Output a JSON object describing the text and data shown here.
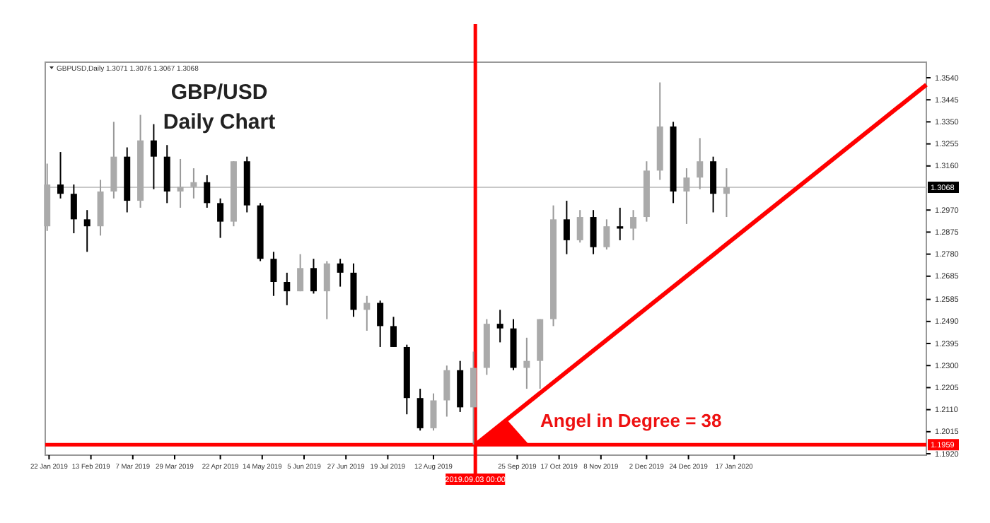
{
  "chart_data": {
    "type": "candlestick",
    "title": "GBP/USD",
    "subtitle": "Daily Chart",
    "annotations": [
      "GBPUSD,Daily 1.3071 1.3076 1.3067 1.3068",
      "Angel in Degree = 38"
    ],
    "x": [
      "2019-01-21",
      "2019-01-28",
      "2019-02-04",
      "2019-02-11",
      "2019-02-18",
      "2019-02-25",
      "2019-03-04",
      "2019-03-11",
      "2019-03-18",
      "2019-03-25",
      "2019-04-01",
      "2019-04-08",
      "2019-04-15",
      "2019-04-22",
      "2019-04-29",
      "2019-05-06",
      "2019-05-13",
      "2019-05-20",
      "2019-05-27",
      "2019-06-03",
      "2019-06-10",
      "2019-06-17",
      "2019-06-24",
      "2019-07-01",
      "2019-07-08",
      "2019-07-15",
      "2019-07-22",
      "2019-07-29",
      "2019-08-05",
      "2019-08-12",
      "2019-08-19",
      "2019-08-26",
      "2019-09-02",
      "2019-09-09",
      "2019-09-16",
      "2019-09-23",
      "2019-09-30",
      "2019-10-07",
      "2019-10-14",
      "2019-10-21",
      "2019-10-28",
      "2019-11-04",
      "2019-11-11",
      "2019-11-18",
      "2019-11-25",
      "2019-12-02",
      "2019-12-09",
      "2019-12-16",
      "2019-12-23",
      "2019-12-30",
      "2020-01-06",
      "2020-01-13"
    ],
    "ohlc": [
      [
        1.29,
        1.317,
        1.288,
        1.308
      ],
      [
        1.308,
        1.322,
        1.302,
        1.304
      ],
      [
        1.304,
        1.308,
        1.287,
        1.293
      ],
      [
        1.293,
        1.297,
        1.279,
        1.29
      ],
      [
        1.29,
        1.31,
        1.286,
        1.305
      ],
      [
        1.305,
        1.335,
        1.302,
        1.32
      ],
      [
        1.32,
        1.324,
        1.296,
        1.301
      ],
      [
        1.301,
        1.338,
        1.298,
        1.327
      ],
      [
        1.327,
        1.334,
        1.306,
        1.32
      ],
      [
        1.32,
        1.325,
        1.3,
        1.305
      ],
      [
        1.305,
        1.319,
        1.298,
        1.307
      ],
      [
        1.307,
        1.315,
        1.302,
        1.309
      ],
      [
        1.309,
        1.312,
        1.298,
        1.3
      ],
      [
        1.3,
        1.302,
        1.285,
        1.292
      ],
      [
        1.292,
        1.318,
        1.29,
        1.318
      ],
      [
        1.318,
        1.32,
        1.296,
        1.299
      ],
      [
        1.299,
        1.3,
        1.275,
        1.276
      ],
      [
        1.276,
        1.279,
        1.26,
        1.266
      ],
      [
        1.266,
        1.27,
        1.256,
        1.262
      ],
      [
        1.262,
        1.278,
        1.262,
        1.272
      ],
      [
        1.272,
        1.276,
        1.261,
        1.262
      ],
      [
        1.262,
        1.275,
        1.25,
        1.274
      ],
      [
        1.274,
        1.276,
        1.264,
        1.27
      ],
      [
        1.27,
        1.274,
        1.251,
        1.254
      ],
      [
        1.254,
        1.26,
        1.245,
        1.257
      ],
      [
        1.257,
        1.258,
        1.238,
        1.247
      ],
      [
        1.247,
        1.251,
        1.238,
        1.238
      ],
      [
        1.238,
        1.239,
        1.209,
        1.216
      ],
      [
        1.216,
        1.22,
        1.202,
        1.203
      ],
      [
        1.203,
        1.218,
        1.202,
        1.215
      ],
      [
        1.215,
        1.23,
        1.208,
        1.228
      ],
      [
        1.228,
        1.232,
        1.21,
        1.212
      ],
      [
        1.212,
        1.236,
        1.196,
        1.229
      ],
      [
        1.229,
        1.25,
        1.226,
        1.248
      ],
      [
        1.248,
        1.254,
        1.24,
        1.246
      ],
      [
        1.246,
        1.25,
        1.228,
        1.229
      ],
      [
        1.229,
        1.242,
        1.22,
        1.232
      ],
      [
        1.232,
        1.25,
        1.22,
        1.25
      ],
      [
        1.25,
        1.299,
        1.247,
        1.293
      ],
      [
        1.293,
        1.301,
        1.278,
        1.284
      ],
      [
        1.284,
        1.297,
        1.283,
        1.294
      ],
      [
        1.294,
        1.297,
        1.278,
        1.281
      ],
      [
        1.281,
        1.293,
        1.28,
        1.29
      ],
      [
        1.29,
        1.298,
        1.284,
        1.289
      ],
      [
        1.289,
        1.297,
        1.284,
        1.294
      ],
      [
        1.294,
        1.318,
        1.292,
        1.314
      ],
      [
        1.314,
        1.352,
        1.31,
        1.333
      ],
      [
        1.333,
        1.335,
        1.3,
        1.305
      ],
      [
        1.305,
        1.315,
        1.291,
        1.311
      ],
      [
        1.311,
        1.328,
        1.306,
        1.318
      ],
      [
        1.318,
        1.32,
        1.296,
        1.304
      ],
      [
        1.304,
        1.315,
        1.294,
        1.3068
      ]
    ],
    "series": [
      {
        "type": "line",
        "color": "#ff0000",
        "x": [
          "2019-09-03",
          "2020-04-27"
        ],
        "values": [
          1.1959,
          1.351
        ]
      }
    ],
    "xlim": [
      "2019-01-20",
      "2020-04-27"
    ],
    "xticks": [
      {
        "value": "2019-01-22",
        "label": "22 Jan 2019"
      },
      {
        "value": "2019-02-13",
        "label": "13 Feb 2019"
      },
      {
        "value": "2019-03-07",
        "label": "7 Mar 2019"
      },
      {
        "value": "2019-03-29",
        "label": "29 Mar 2019"
      },
      {
        "value": "2019-04-22",
        "label": "22 Apr 2019"
      },
      {
        "value": "2019-05-14",
        "label": "14 May 2019"
      },
      {
        "value": "2019-06-05",
        "label": "5 Jun 2019"
      },
      {
        "value": "2019-06-27",
        "label": "27 Jun 2019"
      },
      {
        "value": "2019-07-19",
        "label": "19 Jul 2019"
      },
      {
        "value": "2019-08-12",
        "label": "12 Aug 2019"
      },
      {
        "value": "2019-09-25",
        "label": "25 Sep 2019"
      },
      {
        "value": "2019-10-17",
        "label": "17 Oct 2019"
      },
      {
        "value": "2019-11-08",
        "label": "8 Nov 2019"
      },
      {
        "value": "2019-12-02",
        "label": "2 Dec 2019"
      },
      {
        "value": "2019-12-24",
        "label": "24 Dec 2019"
      },
      {
        "value": "2020-01-17",
        "label": "17 Jan 2020"
      }
    ],
    "ylim": [
      1.1914,
      1.3607
    ],
    "yticks": [
      {
        "value": 1.192,
        "label": "1.1920"
      },
      {
        "value": 1.2015,
        "label": "1.2015"
      },
      {
        "value": 1.211,
        "label": "1.2110"
      },
      {
        "value": 1.2205,
        "label": "1.2205"
      },
      {
        "value": 1.23,
        "label": "1.2300"
      },
      {
        "value": 1.2395,
        "label": "1.2395"
      },
      {
        "value": 1.249,
        "label": "1.2490"
      },
      {
        "value": 1.2585,
        "label": "1.2585"
      },
      {
        "value": 1.2685,
        "label": "1.2685"
      },
      {
        "value": 1.278,
        "label": "1.2780"
      },
      {
        "value": 1.2875,
        "label": "1.2875"
      },
      {
        "value": 1.297,
        "label": "1.2970"
      },
      {
        "value": 1.316,
        "label": "1.3160"
      },
      {
        "value": 1.3255,
        "label": "1.3255"
      },
      {
        "value": 1.335,
        "label": "1.3350"
      },
      {
        "value": 1.3445,
        "label": "1.3445"
      },
      {
        "value": 1.354,
        "label": "1.3540"
      }
    ],
    "ref_lines": [
      {
        "axis": "y",
        "value": 1.3068,
        "label": "1.3068",
        "color": "#c8c8c8"
      },
      {
        "axis": "y",
        "value": 1.1959,
        "label": "1.1959",
        "color": "#ff0000"
      },
      {
        "axis": "x",
        "value": "2019-09-03",
        "label": "2019.09.03 00:00",
        "color": "#ff0000"
      }
    ]
  }
}
